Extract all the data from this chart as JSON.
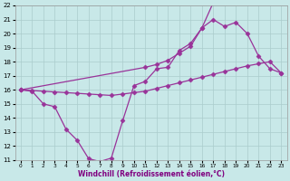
{
  "xlabel": "Windchill (Refroidissement éolien,°C)",
  "bg_color": "#c8e8e8",
  "grid_color": "#aacccc",
  "line_color": "#993399",
  "xlim": [
    -0.5,
    23.5
  ],
  "ylim": [
    11,
    22
  ],
  "xticks": [
    0,
    1,
    2,
    3,
    4,
    5,
    6,
    7,
    8,
    9,
    10,
    11,
    12,
    13,
    14,
    15,
    16,
    17,
    18,
    19,
    20,
    21,
    22,
    23
  ],
  "yticks": [
    11,
    12,
    13,
    14,
    15,
    16,
    17,
    18,
    19,
    20,
    21,
    22
  ],
  "line1_x": [
    0,
    1,
    2,
    3,
    4,
    5,
    6,
    7,
    8,
    9,
    10,
    11,
    12,
    13,
    14,
    15,
    16,
    17
  ],
  "line1_y": [
    16,
    15.9,
    15.0,
    14.8,
    13.2,
    12.4,
    11.1,
    10.9,
    11.15,
    13.8,
    16.3,
    16.6,
    17.5,
    17.6,
    18.8,
    19.3,
    20.4,
    22.2
  ],
  "line2_x": [
    0,
    1,
    2,
    3,
    4,
    5,
    6,
    7,
    8,
    9,
    10,
    11,
    12,
    13,
    14,
    15,
    16,
    17,
    18,
    19,
    20,
    21,
    22,
    23
  ],
  "line2_y": [
    16,
    15.95,
    15.9,
    15.85,
    15.8,
    15.75,
    15.7,
    15.65,
    15.6,
    15.7,
    15.8,
    15.9,
    16.1,
    16.3,
    16.5,
    16.7,
    16.9,
    17.1,
    17.3,
    17.5,
    17.7,
    17.85,
    18.0,
    17.2
  ],
  "line3_x": [
    0,
    11,
    12,
    13,
    14,
    15,
    16,
    17,
    18,
    19,
    20,
    21,
    22,
    23
  ],
  "line3_y": [
    16,
    17.6,
    17.8,
    18.1,
    18.6,
    19.1,
    20.4,
    21.0,
    20.5,
    20.8,
    20.0,
    18.4,
    17.5,
    17.2
  ],
  "marker": "D",
  "markersize": 2.5,
  "linewidth": 0.9,
  "tick_fontsize": 5.0,
  "xlabel_fontsize": 5.5
}
